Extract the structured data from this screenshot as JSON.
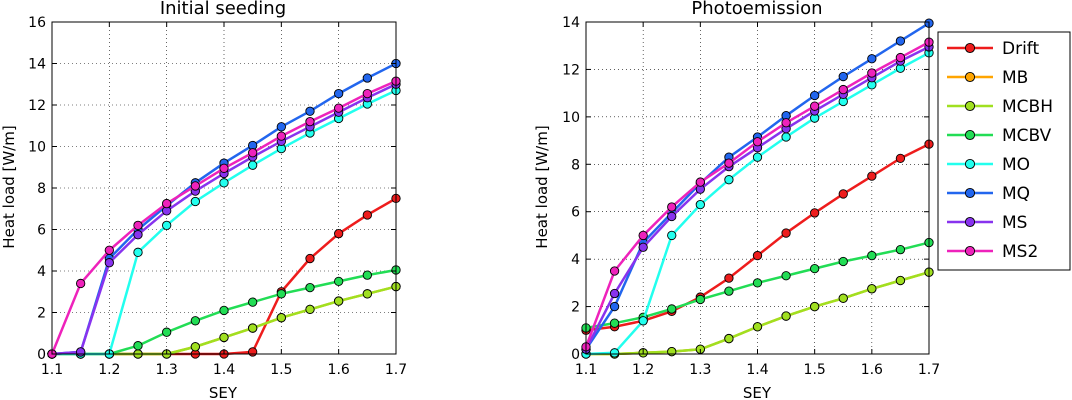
{
  "chart_data": [
    {
      "type": "line",
      "title": "Initial seeding",
      "xlabel": "SEY",
      "ylabel": "Heat load [W/m]",
      "xlim": [
        1.1,
        1.7
      ],
      "ylim": [
        0,
        16
      ],
      "xticks": [
        "1.1",
        "1.2",
        "1.3",
        "1.4",
        "1.5",
        "1.6",
        "1.7"
      ],
      "yticks": [
        "0",
        "2",
        "4",
        "6",
        "8",
        "10",
        "12",
        "14",
        "16"
      ],
      "grid": true,
      "x": [
        1.1,
        1.15,
        1.2,
        1.25,
        1.3,
        1.35,
        1.4,
        1.45,
        1.5,
        1.55,
        1.6,
        1.65,
        1.7
      ],
      "series": [
        {
          "name": "Drift",
          "values": [
            0,
            0,
            0,
            0,
            0,
            0,
            0,
            0.1,
            3.0,
            4.6,
            5.8,
            6.7,
            7.5
          ]
        },
        {
          "name": "MB",
          "values": [
            0,
            0,
            0,
            0,
            0,
            0.35,
            0.8,
            1.25,
            1.75,
            2.15,
            2.55,
            2.9,
            3.25
          ]
        },
        {
          "name": "MCBH",
          "values": [
            0,
            0,
            0,
            0,
            0,
            0.35,
            0.8,
            1.25,
            1.75,
            2.15,
            2.55,
            2.9,
            3.25
          ]
        },
        {
          "name": "MCBV",
          "values": [
            0,
            0,
            0,
            0.4,
            1.05,
            1.6,
            2.1,
            2.5,
            2.9,
            3.2,
            3.5,
            3.8,
            4.05
          ]
        },
        {
          "name": "MO",
          "values": [
            0,
            0,
            0,
            4.9,
            6.2,
            7.35,
            8.25,
            9.1,
            9.9,
            10.65,
            11.35,
            12.05,
            12.7
          ]
        },
        {
          "name": "MQ",
          "values": [
            0,
            0.1,
            4.6,
            6.0,
            7.15,
            8.25,
            9.2,
            10.05,
            10.95,
            11.7,
            12.55,
            13.3,
            14.0
          ]
        },
        {
          "name": "MS",
          "values": [
            0,
            0.1,
            4.4,
            5.75,
            6.9,
            7.85,
            8.7,
            9.5,
            10.25,
            10.95,
            11.65,
            12.35,
            13.0
          ]
        },
        {
          "name": "MS2",
          "values": [
            0,
            3.4,
            5.0,
            6.2,
            7.25,
            8.1,
            8.95,
            9.7,
            10.5,
            11.2,
            11.85,
            12.55,
            13.15
          ]
        }
      ]
    },
    {
      "type": "line",
      "title": "Photoemission",
      "xlabel": "SEY",
      "ylabel": "Heat load [W/m]",
      "xlim": [
        1.1,
        1.7
      ],
      "ylim": [
        0,
        14
      ],
      "xticks": [
        "1.1",
        "1.2",
        "1.3",
        "1.4",
        "1.5",
        "1.6",
        "1.7"
      ],
      "yticks": [
        "0",
        "2",
        "4",
        "6",
        "8",
        "10",
        "12",
        "14"
      ],
      "grid": true,
      "x": [
        1.1,
        1.15,
        1.2,
        1.25,
        1.3,
        1.35,
        1.4,
        1.45,
        1.5,
        1.55,
        1.6,
        1.65,
        1.7
      ],
      "series": [
        {
          "name": "Drift",
          "values": [
            1.0,
            1.15,
            1.4,
            1.8,
            2.4,
            3.2,
            4.15,
            5.1,
            5.95,
            6.75,
            7.5,
            8.25,
            8.85
          ]
        },
        {
          "name": "MB",
          "values": [
            0,
            0,
            0.05,
            0.1,
            0.2,
            0.65,
            1.15,
            1.6,
            2.0,
            2.35,
            2.75,
            3.1,
            3.45
          ]
        },
        {
          "name": "MCBH",
          "values": [
            0,
            0,
            0.05,
            0.1,
            0.2,
            0.65,
            1.15,
            1.6,
            2.0,
            2.35,
            2.75,
            3.1,
            3.45
          ]
        },
        {
          "name": "MCBV",
          "values": [
            1.1,
            1.3,
            1.55,
            1.9,
            2.3,
            2.65,
            3.0,
            3.3,
            3.6,
            3.9,
            4.15,
            4.4,
            4.7
          ]
        },
        {
          "name": "MO",
          "values": [
            0,
            0.05,
            1.4,
            5.0,
            6.3,
            7.35,
            8.3,
            9.15,
            9.95,
            10.65,
            11.35,
            12.05,
            12.7
          ]
        },
        {
          "name": "MQ",
          "values": [
            0.2,
            2.0,
            4.7,
            5.95,
            7.2,
            8.3,
            9.15,
            10.05,
            10.9,
            11.7,
            12.45,
            13.2,
            13.95
          ]
        },
        {
          "name": "MS",
          "values": [
            0.2,
            2.55,
            4.5,
            5.8,
            6.95,
            7.9,
            8.7,
            9.5,
            10.25,
            10.95,
            11.65,
            12.35,
            12.95
          ]
        },
        {
          "name": "MS2",
          "values": [
            0.3,
            3.5,
            5.0,
            6.2,
            7.25,
            8.05,
            8.95,
            9.75,
            10.45,
            11.15,
            11.85,
            12.5,
            13.15
          ]
        }
      ]
    }
  ],
  "legend": {
    "placement": "right",
    "entries": [
      {
        "label": "Drift",
        "color": "#ee1c1c"
      },
      {
        "label": "MB",
        "color": "#ffa500"
      },
      {
        "label": "MCBH",
        "color": "#a0e020"
      },
      {
        "label": "MCBV",
        "color": "#22dd55"
      },
      {
        "label": "MO",
        "color": "#22ffee"
      },
      {
        "label": "MQ",
        "color": "#2266ee"
      },
      {
        "label": "MS",
        "color": "#8833ee"
      },
      {
        "label": "MS2",
        "color": "#ee22bb"
      }
    ]
  },
  "colors": {
    "Drift": "#ee1c1c",
    "MB": "#ffa500",
    "MCBH": "#a0e020",
    "MCBV": "#22dd55",
    "MO": "#22ffee",
    "MQ": "#2266ee",
    "MS": "#8833ee",
    "MS2": "#ee22bb"
  }
}
